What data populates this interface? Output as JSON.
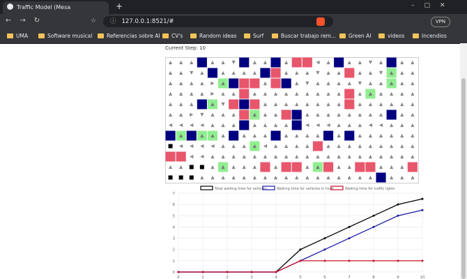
{
  "browser": {
    "tab_title": "Traffic Model (Mesa visualization)",
    "url": "127.0.0.1:8521/#",
    "vpn": "VPN",
    "bookmarks": [
      "UMA",
      "Software musical",
      "Referencias sobre AI",
      "CV's",
      "Random ideas",
      "Surf",
      "Buscar trabajo rem...",
      "Green AI",
      "videos",
      "Incendios"
    ]
  },
  "page": {
    "step_label": "Current Step: 10"
  },
  "chart_data": {
    "type": "line",
    "x": [
      0,
      1,
      2,
      3,
      4,
      5,
      6,
      7,
      8,
      9,
      10
    ],
    "series": [
      {
        "name": "Total waiting time for vehicles",
        "color": "#000000",
        "values": [
          0,
          0,
          0,
          0,
          0,
          2,
          3,
          4,
          5,
          6,
          6.5
        ]
      },
      {
        "name": "Waiting time for vehicles in front",
        "color": "#1a1aa6",
        "values": [
          0,
          0,
          0,
          0,
          0,
          1,
          2,
          3,
          4,
          5,
          5.5
        ]
      },
      {
        "name": "Waiting time for traffic lights",
        "color": "#c8102e",
        "values": [
          0,
          0,
          0,
          0,
          0,
          1,
          1,
          1,
          1,
          1,
          1
        ]
      }
    ],
    "xlim": [
      0,
      10
    ],
    "xticks": [
      0,
      1,
      2,
      3,
      4,
      5,
      6,
      7,
      8,
      9,
      10
    ],
    "ylim": [
      0,
      7
    ],
    "yticks": [
      0,
      1,
      2,
      3,
      4,
      5,
      6,
      7
    ],
    "grid": true
  }
}
